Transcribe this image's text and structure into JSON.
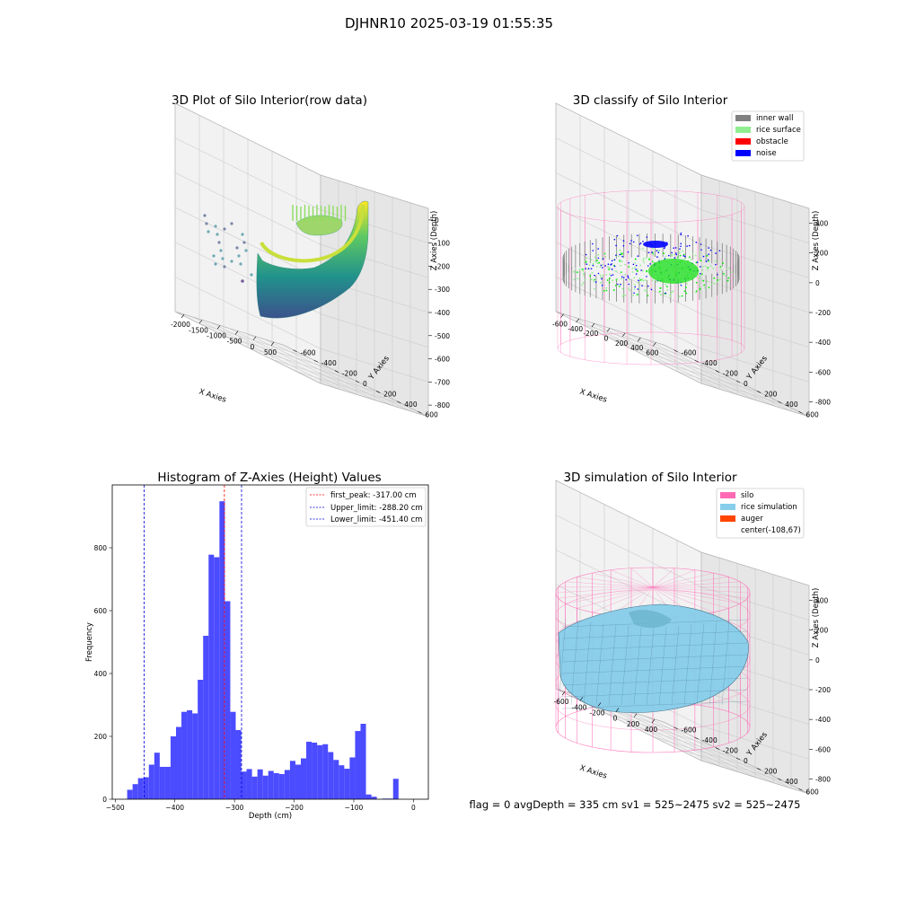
{
  "suptitle": "DJHNR10 2025-03-19 01:55:35",
  "colors": {
    "pane": "#f2f2f2",
    "pane_dark": "#e6e6e6",
    "grid": "#cccccc",
    "hist_bar": "#4b4bff",
    "peak_line": "#ff0000",
    "limit_line": "#0000dd",
    "silo": "#ff69b4",
    "rice": "#87ceeb",
    "auger": "#ff4500",
    "inner_wall": "#808080",
    "rice_surface": "#90ee90",
    "obstacle": "#ff0000",
    "noise": "#0000ff"
  },
  "panels": {
    "raw": {
      "title": "3D Plot of Silo Interior(row data)",
      "xlabel": "X Axies",
      "ylabel": "Y Axies",
      "zlabel": "Z Axies (Depth)",
      "xticks": [
        "-2000",
        "-1500",
        "-1000",
        "-500",
        "0",
        "500"
      ],
      "yticks": [
        "600",
        "400",
        "200",
        "0",
        "-200",
        "-400",
        "-600"
      ],
      "zticks": [
        "0",
        "-100",
        "-200",
        "-300",
        "-400",
        "-500",
        "-600",
        "-700",
        "-800"
      ]
    },
    "classify": {
      "title": "3D classify of Silo Interior",
      "xlabel": "X Axies",
      "ylabel": "Y Axies",
      "zlabel": "Z Axies (Depth)",
      "xticks": [
        "-600",
        "-400",
        "-200",
        "0",
        "200",
        "400",
        "600"
      ],
      "yticks": [
        "600",
        "400",
        "200",
        "0",
        "-200",
        "-400",
        "-600"
      ],
      "zticks": [
        "400",
        "200",
        "0",
        "-200",
        "-400",
        "-600",
        "-800"
      ],
      "legend": [
        {
          "label": "inner wall",
          "color": "#808080"
        },
        {
          "label": "rice surface",
          "color": "#90ee90"
        },
        {
          "label": "obstacle",
          "color": "#ff0000"
        },
        {
          "label": "noise",
          "color": "#0000ff"
        }
      ]
    },
    "simulation": {
      "title": "3D simulation of Silo Interior",
      "xlabel": "X Axies",
      "ylabel": "Y Axies",
      "zlabel": "Z Axies (Depth)",
      "xticks": [
        "-600",
        "-400",
        "-200",
        "0",
        "200",
        "400"
      ],
      "yticks": [
        "600",
        "400",
        "200",
        "0",
        "-200",
        "-400",
        "-600"
      ],
      "zticks": [
        "400",
        "200",
        "0",
        "-200",
        "-400",
        "-600",
        "-800"
      ],
      "legend": [
        {
          "label": "silo",
          "color": "#ff69b4"
        },
        {
          "label": "rice simulation",
          "color": "#87ceeb"
        },
        {
          "label": "auger",
          "color": "#ff4500"
        },
        {
          "label": "center(-108,67)",
          "color": ""
        }
      ],
      "status": "flag = 0     avgDepth = 335 cm  sv1 = 525~2475  sv2 = 525~2475"
    }
  },
  "chart_data": {
    "type": "bar",
    "title": "Histogram of Z-Axies (Height) Values",
    "xlabel": "Depth (cm)",
    "ylabel": "Frequency",
    "xlim": [
      -505,
      25
    ],
    "ylim": [
      0,
      1000
    ],
    "xticks": [
      -500,
      -400,
      -300,
      -200,
      -100,
      0
    ],
    "yticks": [
      0,
      200,
      400,
      600,
      800
    ],
    "bin_width": 9.1,
    "bin_start": -480,
    "values": [
      30,
      48,
      67,
      70,
      110,
      148,
      103,
      103,
      200,
      230,
      278,
      283,
      273,
      380,
      520,
      778,
      770,
      948,
      630,
      278,
      220,
      88,
      96,
      72,
      95,
      75,
      90,
      83,
      80,
      93,
      122,
      110,
      130,
      183,
      180,
      172,
      175,
      150,
      125,
      108,
      97,
      133,
      217,
      240,
      15,
      8,
      0,
      2,
      2,
      65
    ],
    "lines": [
      {
        "label": "first_peak: -317.00 cm",
        "x": -317.0,
        "color": "#ff0000"
      },
      {
        "label": "Upper_limit: -288.20 cm",
        "x": -288.2,
        "color": "#0000dd"
      },
      {
        "label": "Lower_limit: -451.40 cm",
        "x": -451.4,
        "color": "#0000dd"
      }
    ]
  }
}
